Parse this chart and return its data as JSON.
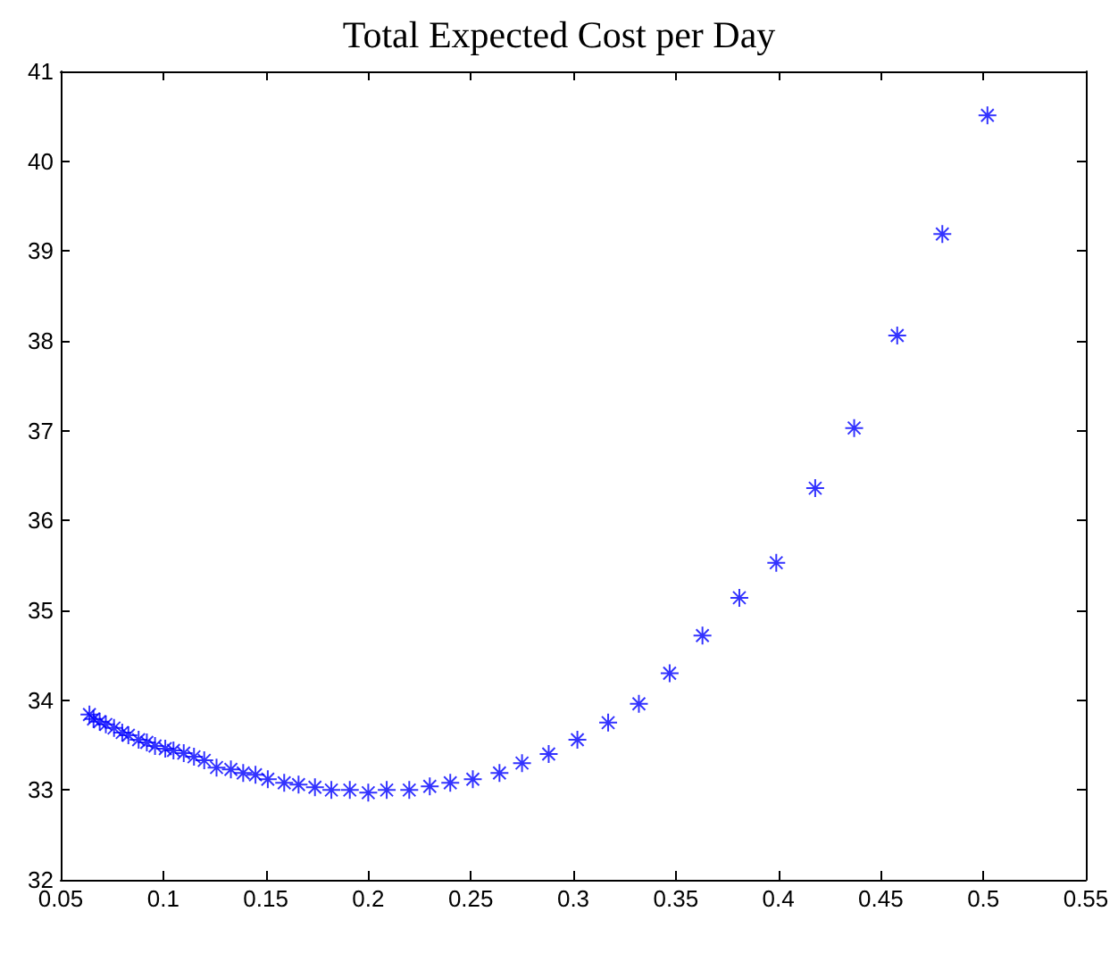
{
  "chart_data": {
    "type": "scatter",
    "title": "Total Expected Cost per Day",
    "x": [
      0.064,
      0.066,
      0.069,
      0.072,
      0.076,
      0.08,
      0.083,
      0.088,
      0.092,
      0.096,
      0.101,
      0.105,
      0.11,
      0.115,
      0.12,
      0.126,
      0.133,
      0.139,
      0.145,
      0.151,
      0.159,
      0.166,
      0.174,
      0.182,
      0.191,
      0.2,
      0.209,
      0.22,
      0.23,
      0.24,
      0.251,
      0.264,
      0.275,
      0.288,
      0.302,
      0.317,
      0.332,
      0.347,
      0.363,
      0.381,
      0.399,
      0.418,
      0.437,
      0.458,
      0.48,
      0.502
    ],
    "series": [
      {
        "color": "#0000ff",
        "values": [
          33.84,
          33.79,
          33.76,
          33.73,
          33.69,
          33.64,
          33.61,
          33.56,
          33.53,
          33.49,
          33.46,
          33.44,
          33.41,
          33.37,
          33.33,
          33.25,
          33.23,
          33.19,
          33.17,
          33.12,
          33.08,
          33.06,
          33.03,
          33.0,
          33.0,
          32.97,
          33.0,
          33.0,
          33.04,
          33.08,
          33.12,
          33.19,
          33.3,
          33.4,
          33.56,
          33.75,
          33.96,
          34.3,
          34.72,
          35.14,
          35.53,
          36.36,
          37.03,
          38.06,
          39.19,
          40.51
        ]
      }
    ],
    "xlim": [
      0.05,
      0.55
    ],
    "xticks": [
      0.05,
      0.1,
      0.15,
      0.2,
      0.25,
      0.3,
      0.35,
      0.4,
      0.45,
      0.5,
      0.55
    ],
    "ylim": [
      32,
      41
    ],
    "yticks": [
      32,
      33,
      34,
      35,
      36,
      37,
      38,
      39,
      40,
      41
    ],
    "marker": "cross",
    "grid": false
  }
}
